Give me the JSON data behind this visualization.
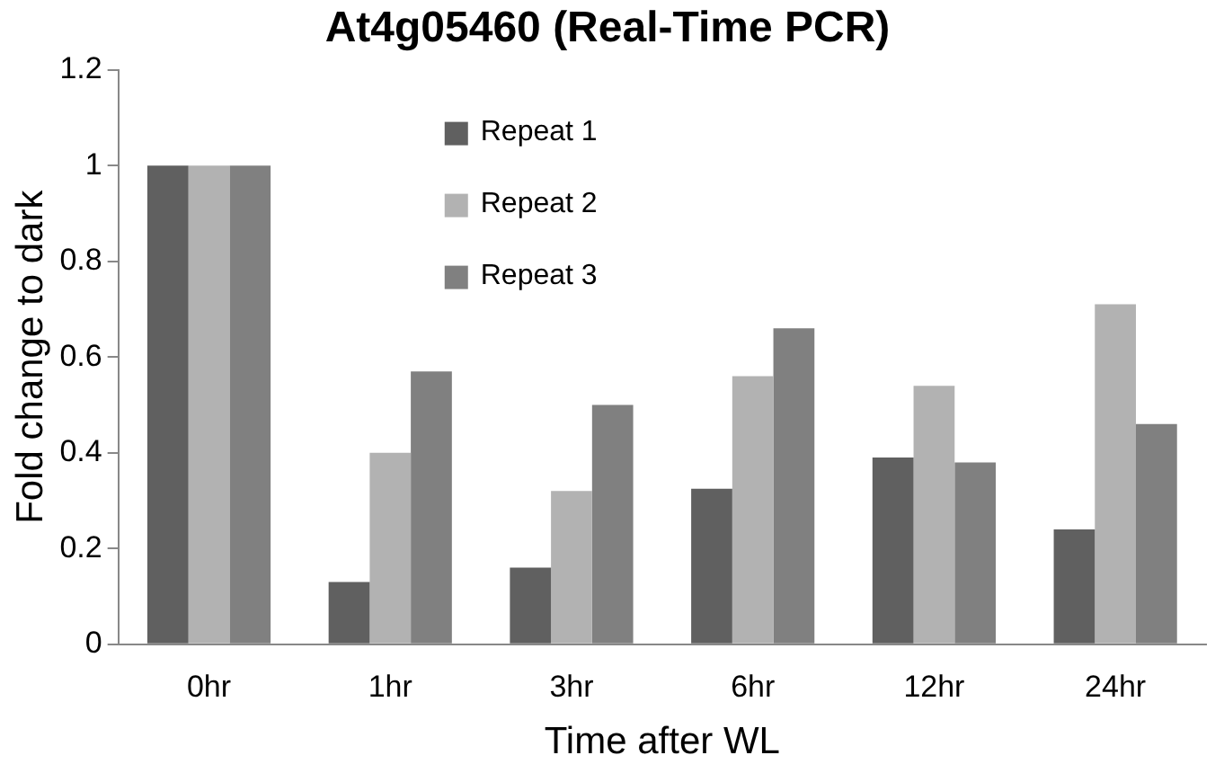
{
  "chart_data": {
    "type": "bar",
    "title": "At4g05460 (Real-Time PCR)",
    "xlabel": "Time after WL",
    "ylabel": "Fold change to dark",
    "categories": [
      "0hr",
      "1hr",
      "3hr",
      "6hr",
      "12hr",
      "24hr"
    ],
    "series": [
      {
        "name": "Repeat 1",
        "color": "#606060",
        "values": [
          1,
          0.13,
          0.16,
          0.325,
          0.39,
          0.24
        ]
      },
      {
        "name": "Repeat 2",
        "color": "#b2b2b2",
        "values": [
          1,
          0.4,
          0.32,
          0.56,
          0.54,
          0.71
        ]
      },
      {
        "name": "Repeat 3",
        "color": "#808080",
        "values": [
          1,
          0.57,
          0.5,
          0.66,
          0.38,
          0.46
        ]
      }
    ],
    "ylim": [
      0,
      1.2
    ],
    "yticks": [
      0,
      0.2,
      0.4,
      0.6,
      0.8,
      1,
      1.2
    ],
    "grid": false,
    "legend": "top"
  }
}
